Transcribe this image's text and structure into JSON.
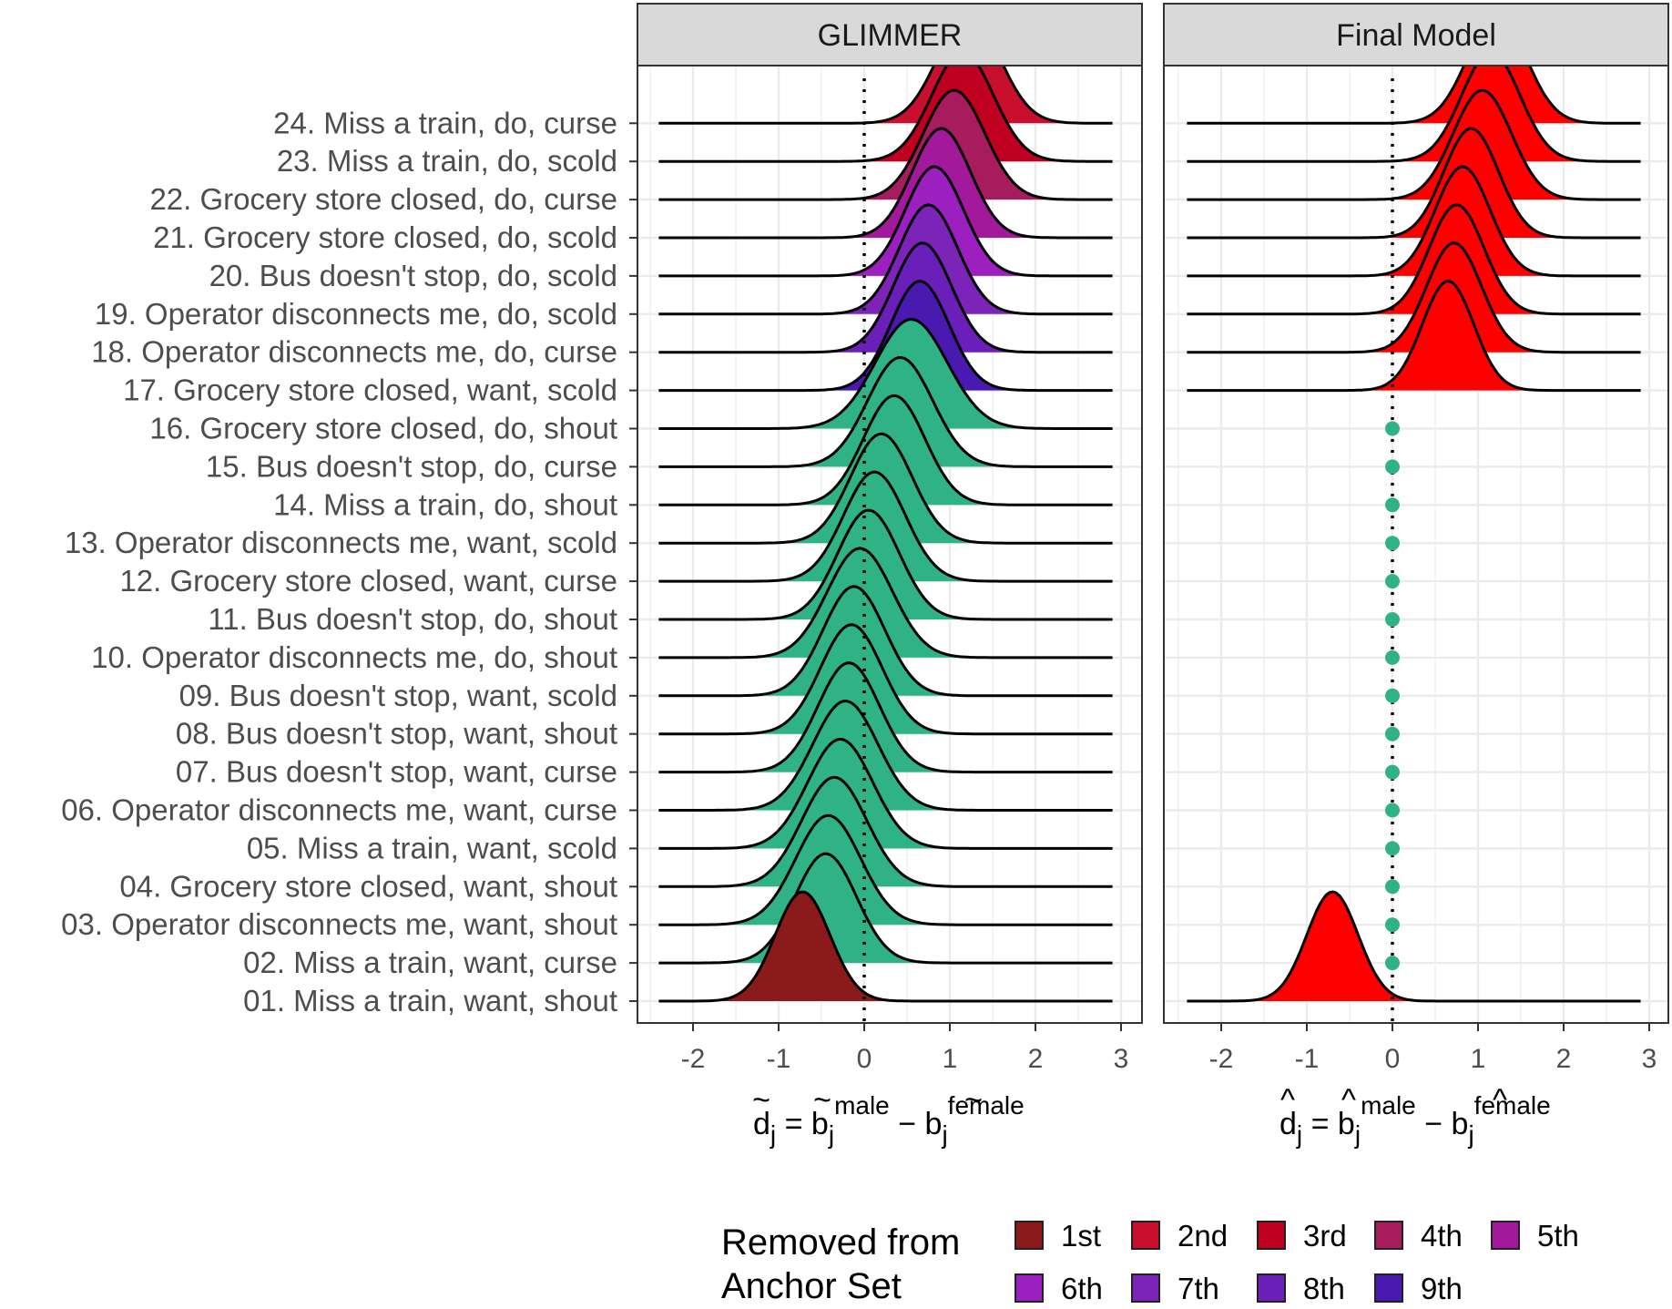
{
  "chart_data": {
    "type": "ridgeline",
    "x_range": [
      -2.5,
      3.1
    ],
    "x_ticks": [
      "-2",
      "-1",
      "0",
      "1",
      "2",
      "3"
    ],
    "reference_line_x": 0,
    "items": [
      "01. Miss a train, want, shout",
      "02. Miss a train, want, curse",
      "03. Operator disconnects me, want, shout",
      "04. Grocery store closed, want, shout",
      "05. Miss a train, want, scold",
      "06. Operator disconnects me, want, curse",
      "07. Bus doesn't stop, want, curse",
      "08. Bus doesn't stop, want, shout",
      "09. Bus doesn't stop, want, scold",
      "10. Operator disconnects me, do, shout",
      "11. Bus doesn't stop, do, shout",
      "12. Grocery store closed, want, curse",
      "13. Operator disconnects me, want, scold",
      "14. Miss a train, do, shout",
      "15. Bus doesn't stop, do, curse",
      "16. Grocery store closed, do, shout",
      "17. Grocery store closed, want, scold",
      "18. Operator disconnects me, do, curse",
      "19. Operator disconnects me, do, scold",
      "20. Bus doesn't stop, do, scold",
      "21. Grocery store closed, do, scold",
      "22. Grocery store closed, do, curse",
      "23. Miss a train, do, scold",
      "24. Miss a train, do, curse"
    ],
    "panels": [
      {
        "title": "GLIMMER",
        "x_label": {
          "d": "d",
          "d_sub": "j",
          "eq": " = ",
          "b1": "b",
          "b1_sub": "j",
          "b1_sup": "male",
          "minus": " − ",
          "b2": "b",
          "b2_sub": "j",
          "b2_sup": "female",
          "accent": "~"
        },
        "densities": [
          {
            "item": 1,
            "mean": -0.72,
            "sd": 0.32,
            "removed": "1st"
          },
          {
            "item": 2,
            "mean": -0.45,
            "sd": 0.36,
            "removed": null
          },
          {
            "item": 3,
            "mean": -0.42,
            "sd": 0.38,
            "removed": null
          },
          {
            "item": 4,
            "mean": -0.35,
            "sd": 0.38,
            "removed": null
          },
          {
            "item": 5,
            "mean": -0.28,
            "sd": 0.38,
            "removed": null
          },
          {
            "item": 6,
            "mean": -0.22,
            "sd": 0.38,
            "removed": null
          },
          {
            "item": 7,
            "mean": -0.18,
            "sd": 0.36,
            "removed": null
          },
          {
            "item": 8,
            "mean": -0.15,
            "sd": 0.36,
            "removed": null
          },
          {
            "item": 9,
            "mean": -0.12,
            "sd": 0.36,
            "removed": null
          },
          {
            "item": 10,
            "mean": -0.05,
            "sd": 0.38,
            "removed": null
          },
          {
            "item": 11,
            "mean": 0.05,
            "sd": 0.36,
            "removed": null
          },
          {
            "item": 12,
            "mean": 0.12,
            "sd": 0.36,
            "removed": null
          },
          {
            "item": 13,
            "mean": 0.2,
            "sd": 0.36,
            "removed": null
          },
          {
            "item": 14,
            "mean": 0.35,
            "sd": 0.36,
            "removed": null
          },
          {
            "item": 15,
            "mean": 0.42,
            "sd": 0.38,
            "removed": null
          },
          {
            "item": 16,
            "mean": 0.55,
            "sd": 0.42,
            "removed": null
          },
          {
            "item": 17,
            "mean": 0.65,
            "sd": 0.34,
            "removed": "9th"
          },
          {
            "item": 18,
            "mean": 0.68,
            "sd": 0.34,
            "removed": "8th"
          },
          {
            "item": 19,
            "mean": 0.75,
            "sd": 0.34,
            "removed": "7th"
          },
          {
            "item": 20,
            "mean": 0.82,
            "sd": 0.34,
            "removed": "6th"
          },
          {
            "item": 21,
            "mean": 0.9,
            "sd": 0.34,
            "removed": "5th"
          },
          {
            "item": 22,
            "mean": 1.05,
            "sd": 0.36,
            "removed": "4th"
          },
          {
            "item": 23,
            "mean": 1.15,
            "sd": 0.36,
            "removed": "3rd"
          },
          {
            "item": 24,
            "mean": 1.22,
            "sd": 0.36,
            "removed": "2nd"
          }
        ]
      },
      {
        "title": "Final Model",
        "x_label": {
          "d": "d",
          "d_sub": "j",
          "eq": " = ",
          "b1": "b",
          "b1_sub": "j",
          "b1_sup": "male",
          "minus": " − ",
          "b2": "b",
          "b2_sub": "j",
          "b2_sup": "female",
          "accent": "^"
        },
        "densities": [
          {
            "item": 1,
            "mean": -0.7,
            "sd": 0.3
          },
          {
            "item": 17,
            "mean": 0.65,
            "sd": 0.3
          },
          {
            "item": 18,
            "mean": 0.72,
            "sd": 0.32
          },
          {
            "item": 19,
            "mean": 0.75,
            "sd": 0.32
          },
          {
            "item": 20,
            "mean": 0.82,
            "sd": 0.32
          },
          {
            "item": 21,
            "mean": 0.92,
            "sd": 0.32
          },
          {
            "item": 22,
            "mean": 1.05,
            "sd": 0.34
          },
          {
            "item": 23,
            "mean": 1.15,
            "sd": 0.34
          },
          {
            "item": 24,
            "mean": 1.22,
            "sd": 0.34
          }
        ],
        "points": [
          {
            "item": 2,
            "x": 0
          },
          {
            "item": 3,
            "x": 0
          },
          {
            "item": 4,
            "x": 0
          },
          {
            "item": 5,
            "x": 0
          },
          {
            "item": 6,
            "x": 0
          },
          {
            "item": 7,
            "x": 0
          },
          {
            "item": 8,
            "x": 0
          },
          {
            "item": 9,
            "x": 0
          },
          {
            "item": 10,
            "x": 0
          },
          {
            "item": 11,
            "x": 0
          },
          {
            "item": 12,
            "x": 0
          },
          {
            "item": 13,
            "x": 0
          },
          {
            "item": 14,
            "x": 0
          },
          {
            "item": 15,
            "x": 0
          },
          {
            "item": 16,
            "x": 0
          }
        ]
      }
    ],
    "colors": {
      "anchor": "#2fb386",
      "final_model_fill": "#ff0000",
      "point": "#2fb386",
      "removed": {
        "1st": "#8b1a1a",
        "2nd": "#c8102e",
        "3rd": "#c00020",
        "4th": "#a61c5c",
        "5th": "#a2199c",
        "6th": "#9c20c0",
        "7th": "#7d24b8",
        "8th": "#6a1fb8",
        "9th": "#4a1ab0"
      }
    },
    "legend": {
      "title_line1": "Removed from",
      "title_line2": "Anchor Set",
      "placement": "bottom",
      "entries": [
        "1st",
        "2nd",
        "3rd",
        "4th",
        "5th",
        "6th",
        "7th",
        "8th",
        "9th"
      ]
    }
  }
}
